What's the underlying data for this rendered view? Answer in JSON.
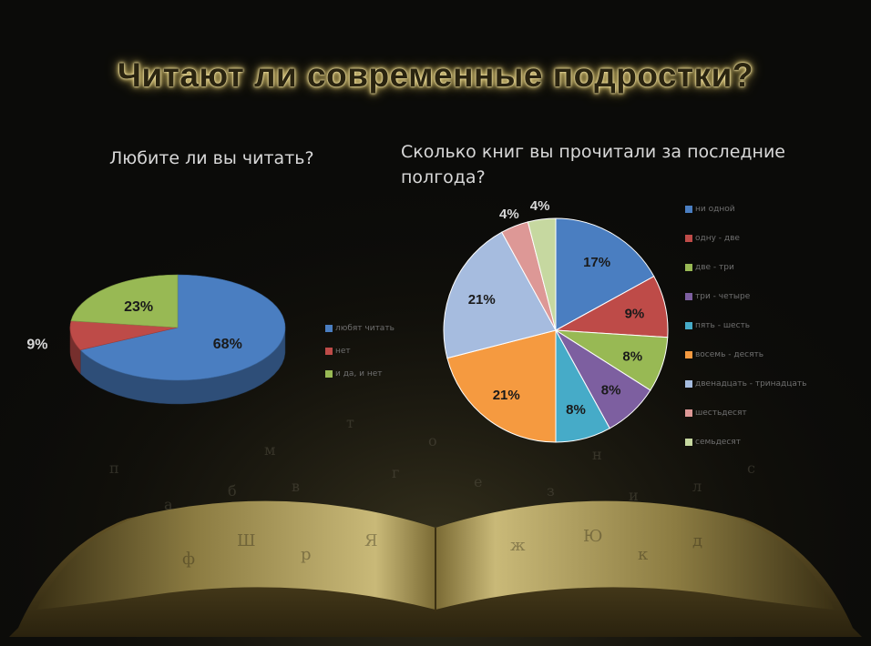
{
  "page": {
    "title": "Читают ли современные подростки?"
  },
  "chart_data": [
    {
      "type": "pie",
      "title": "Любите ли вы читать?",
      "categories": [
        "любят читать",
        "нет",
        "и да, и нет"
      ],
      "values": [
        68,
        9,
        23
      ],
      "labels": [
        "68%",
        "9%",
        "23%"
      ],
      "colors": [
        "#4a7ec1",
        "#be4b48",
        "#98b954"
      ],
      "legend": "right",
      "style": "3d"
    },
    {
      "type": "pie",
      "title": "Сколько книг вы прочитали за последние полгода?",
      "categories": [
        "ни одной",
        "одну - две",
        "две - три",
        "три - четыре",
        "пять - шесть",
        "восемь - десять",
        "двенадцать - тринадцать",
        "шестьдесят",
        "семьдесят"
      ],
      "values": [
        17,
        9,
        8,
        8,
        8,
        21,
        21,
        4,
        4
      ],
      "labels": [
        "17%",
        "9%",
        "8%",
        "8%",
        "8%",
        "21%",
        "21%",
        "4%",
        "4%"
      ],
      "colors": [
        "#4a7ec1",
        "#be4b48",
        "#98b954",
        "#7d5fa0",
        "#46abc8",
        "#f59a40",
        "#a6bcdf",
        "#dd9896",
        "#c6d8a0"
      ],
      "legend": "right"
    }
  ]
}
